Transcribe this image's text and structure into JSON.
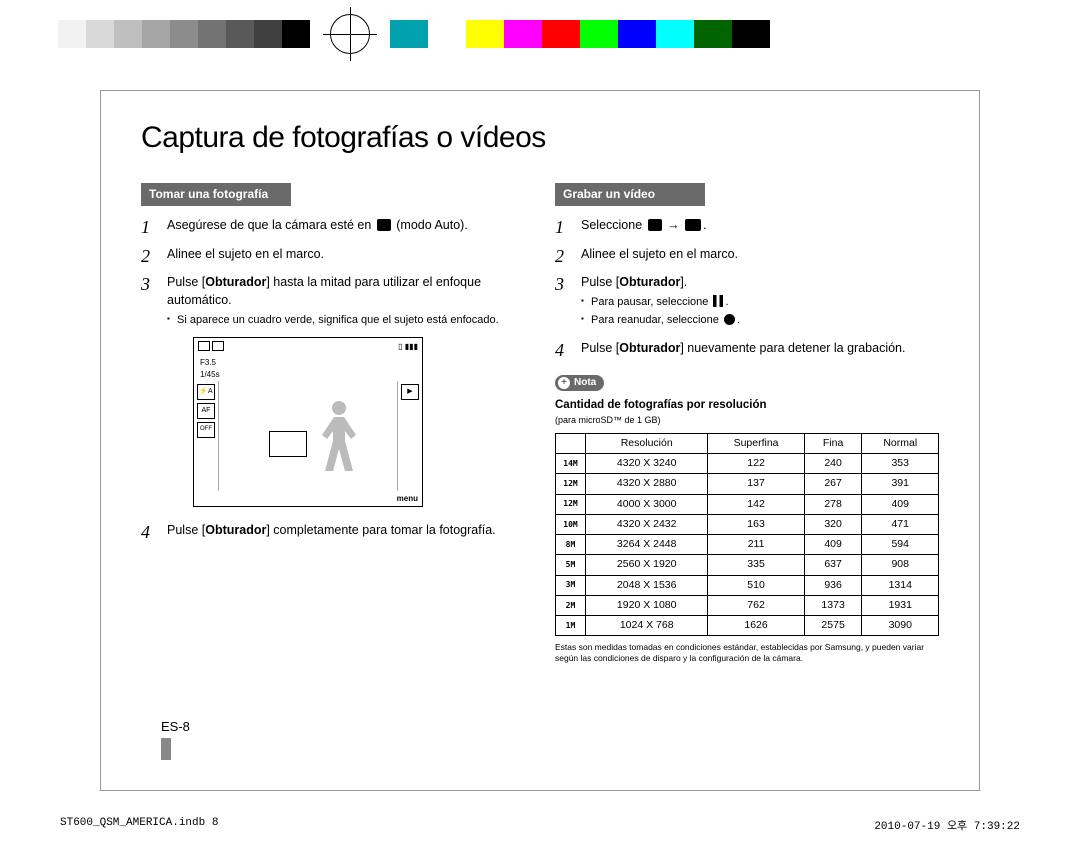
{
  "colorbar": {
    "grays": [
      "#ffffff",
      "#f2f2f2",
      "#d9d9d9",
      "#bfbfbf",
      "#a6a6a6",
      "#8c8c8c",
      "#737373",
      "#595959",
      "#404040",
      "#000000"
    ],
    "colors": [
      "#00a0af",
      "#ffffff",
      "#ffff00",
      "#ff00ff",
      "#ff0000",
      "#00ff00",
      "#0000ff",
      "#00ffff",
      "#006400",
      "#000000"
    ]
  },
  "title": "Captura de fotografías o vídeos",
  "left": {
    "header": "Tomar una fotografía",
    "step1a": "Asegúrese de que la cámara esté en ",
    "step1b": " (modo Auto).",
    "step2": "Alinee el sujeto en el marco.",
    "step3a": "Pulse [",
    "step3bold": "Obturador",
    "step3b": "] hasta la mitad para utilizar el enfoque automático.",
    "step3sub": "Si aparece un cuadro verde, significa que el sujeto está enfocado.",
    "step4a": "Pulse [",
    "step4bold": "Obturador",
    "step4b": "] completamente para tomar la fotografía.",
    "lcd": {
      "f": "F3.5",
      "shutter": "1/45s",
      "menu": "menu"
    }
  },
  "right": {
    "header": "Grabar un vídeo",
    "step1a": "Seleccione ",
    "step1b": " → ",
    "step1c": ".",
    "step2": "Alinee el sujeto en el marco.",
    "step3a": "Pulse [",
    "step3bold": "Obturador",
    "step3b": "].",
    "step3sub1": "Para pausar, seleccione ",
    "step3sub2": "Para reanudar, seleccione ",
    "step4a": "Pulse [",
    "step4bold": "Obturador",
    "step4b": "] nuevamente para detener la grabación.",
    "nota": "Nota",
    "subhead": "Cantidad de fotografías por resolución",
    "subnote": "(para microSD™ de 1 GB)",
    "table": {
      "headers": [
        "Resolución",
        "Superfina",
        "Fina",
        "Normal"
      ],
      "icons": [
        "14M",
        "12M",
        "12M",
        "10M",
        "8M",
        "5M",
        "3M",
        "2M",
        "1M"
      ],
      "rows": [
        [
          "4320 X 3240",
          "122",
          "240",
          "353"
        ],
        [
          "4320 X 2880",
          "137",
          "267",
          "391"
        ],
        [
          "4000 X 3000",
          "142",
          "278",
          "409"
        ],
        [
          "4320 X 2432",
          "163",
          "320",
          "471"
        ],
        [
          "3264 X 2448",
          "211",
          "409",
          "594"
        ],
        [
          "2560 X 1920",
          "335",
          "637",
          "908"
        ],
        [
          "2048 X 1536",
          "510",
          "936",
          "1314"
        ],
        [
          "1920 X 1080",
          "762",
          "1373",
          "1931"
        ],
        [
          "1024 X 768",
          "1626",
          "2575",
          "3090"
        ]
      ]
    },
    "footnote": "Estas son medidas tomadas en condiciones estándar, establecidas por Samsung, y pueden variar según las condiciones de disparo y la configuración de la cámara."
  },
  "pageNum": "ES-8",
  "footer": {
    "left": "ST600_QSM_AMERICA.indb   8",
    "right": "2010-07-19   오후 7:39:22"
  }
}
